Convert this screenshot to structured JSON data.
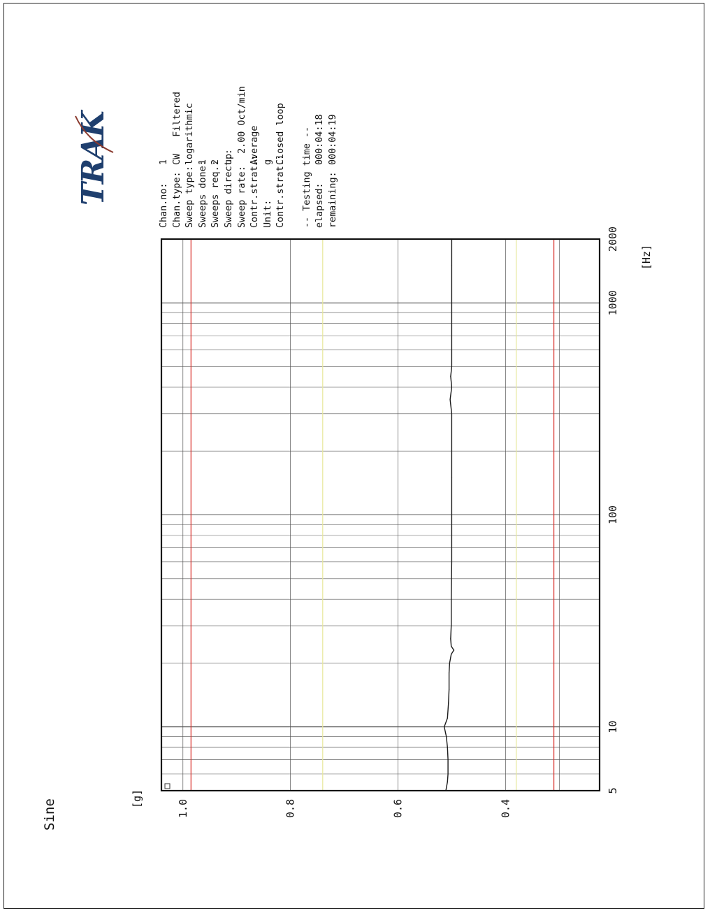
{
  "page_title": "Sine",
  "logo_text": "TRAK",
  "info": {
    "rows": [
      {
        "label": "Chan.no:",
        "value": "1"
      },
      {
        "label": "Chan.type:",
        "value": "CW   Filtered"
      },
      {
        "label": "Sweep type:",
        "value": "logarithmic"
      },
      {
        "label": "Sweeps done:",
        "value": "1"
      },
      {
        "label": "Sweeps req.:",
        "value": "2"
      },
      {
        "label": "Sweep direct.:",
        "value": "up"
      },
      {
        "label": "Sweep rate:",
        "value": "  2.00 Oct/min"
      },
      {
        "label": "Contr.strat.:",
        "value": "Average"
      },
      {
        "label": "Unit:",
        "value": "g"
      },
      {
        "label": "Contr.strat.:",
        "value": "Closed loop"
      }
    ],
    "testing_header": "-- Testing time --",
    "elapsed_label": "elapsed:",
    "elapsed_value": "000:04:18",
    "remaining_label": "remaining:",
    "remaining_value": "000:04:19"
  },
  "chart_data": {
    "type": "line",
    "xlabel": "[Hz]",
    "ylabel": "[g]",
    "x_scale": "log",
    "xlim": [
      5,
      2000
    ],
    "ylim": [
      0.225,
      1.04
    ],
    "x_ticks": [
      "5",
      "10",
      "100",
      "1000",
      "2000"
    ],
    "y_ticks": [
      "1.0",
      "0.8",
      "0.6",
      "0.4"
    ],
    "red_limit_lines_g": [
      0.985,
      0.31
    ],
    "yellow_lines_g": [
      0.74,
      0.38
    ],
    "grid": true,
    "series": [
      {
        "x": [
          5,
          5.5,
          6,
          7,
          8,
          9,
          10,
          11,
          13,
          15,
          18,
          20,
          22,
          23,
          24,
          26,
          30,
          40,
          60,
          100,
          150,
          200,
          300,
          350,
          400,
          450,
          500,
          600,
          800,
          1000,
          1500,
          2000
        ],
        "y": [
          0.511,
          0.508,
          0.507,
          0.507,
          0.508,
          0.51,
          0.514,
          0.508,
          0.506,
          0.505,
          0.505,
          0.504,
          0.501,
          0.496,
          0.501,
          0.502,
          0.501,
          0.501,
          0.5,
          0.5,
          0.5,
          0.5,
          0.5,
          0.503,
          0.5,
          0.502,
          0.5,
          0.5,
          0.5,
          0.5,
          0.5,
          0.5
        ]
      }
    ],
    "colors": {
      "trace": "#1a1a1a",
      "grid": "#555555",
      "limit": "#d8302c",
      "warning": "#e7e89a",
      "logo": "#1f3f6e"
    }
  }
}
